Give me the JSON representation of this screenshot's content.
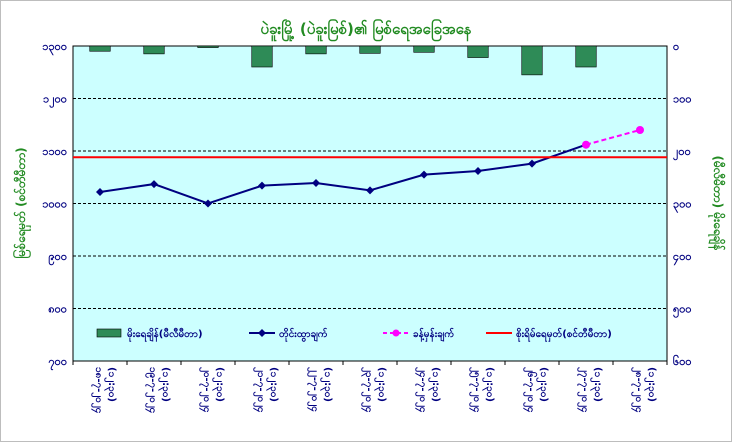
{
  "chart_data": {
    "type": "line",
    "title": "ပဲခူးမြို့ (ပဲခူးမြစ်)၏ မြစ်ရေအခြေအနေ",
    "ylabel_left": "မြစ်ရေမှတ် (စင်တီမီတာ)",
    "ylabel_right": "(မီလီမီတာ) မိုးရေချိန်",
    "ylim_left": [
      700,
      1300
    ],
    "yticks_left": [
      "၇၀၀",
      "၈၀၀",
      "၉၀၀",
      "၁၀၀၀",
      "၁၁၀၀",
      "၁၂၀၀",
      "၁၃၀၀"
    ],
    "ylim_right": [
      600,
      0
    ],
    "yticks_right": [
      "၀",
      "၁၀၀",
      "၂၀၀",
      "၃၀၀",
      "၄၀၀",
      "၅၀၀",
      "၆၀၀"
    ],
    "categories": [
      [
        "၁၈-၇-၂၀၂၄",
        "(၁၂:၃၀)"
      ],
      [
        "၁၉-၇-၂၀၂၄",
        "(၁၂:၃၀)"
      ],
      [
        "၂၀-၇-၂၀၂၄",
        "(၁၂:၃၀)"
      ],
      [
        "၂၁-၇-၂၀၂၄",
        "(၁၂:၃၀)"
      ],
      [
        "၂၂-၇-၂၀၂၄",
        "(၁၂:၃၀)"
      ],
      [
        "၂၃-၇-၂၀၂၄",
        "(၁၂:၃၀)"
      ],
      [
        "၂၄-၇-၂၀၂၄",
        "(၁၂:၃၀)"
      ],
      [
        "၂၅-၇-၂၀၂၄",
        "(၁၂:၃၀)"
      ],
      [
        "၂၆-၇-၂၀၂၄",
        "(၁၂:၃၀)"
      ],
      [
        "၂၇-၇-၂၀၂၄",
        "(၁၂:၃၀)"
      ],
      [
        "၂၈-၇-၂၀၂၄",
        "(၁၂:၃၀)"
      ]
    ],
    "series": [
      {
        "name": "မိုးရေချိန်(မီလီမီတာ)",
        "type": "bar",
        "axis": "right",
        "color": "#2e8b57",
        "values": [
          10,
          15,
          3,
          40,
          15,
          14,
          12,
          22,
          55,
          40,
          null
        ]
      },
      {
        "name": "တိုင်းထွာချက်",
        "type": "line",
        "axis": "left",
        "color": "#000080",
        "values": [
          1022,
          1037,
          1000,
          1034,
          1039,
          1025,
          1055,
          1062,
          1076,
          1112,
          null
        ]
      },
      {
        "name": "ခန့်မှန်းချက်",
        "type": "line",
        "axis": "left",
        "color": "#ff00ff",
        "dashed": true,
        "values": [
          null,
          null,
          null,
          null,
          null,
          null,
          null,
          null,
          null,
          1112,
          1140
        ]
      },
      {
        "name": "စိုးရိမ်ရေမှတ်(စင်တီမီတာ)",
        "type": "hline",
        "axis": "left",
        "color": "#ff0000",
        "value": 1088
      }
    ],
    "legend": "bottom-inside",
    "grid": true,
    "plot_background": "#ccffff"
  }
}
